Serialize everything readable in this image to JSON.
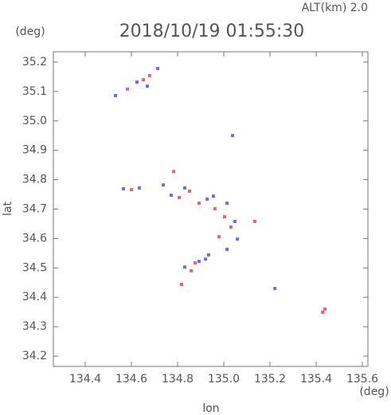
{
  "chart_data": {
    "type": "scatter",
    "title": "2018/10/19 01:55:30",
    "annotation": "ALT(km) 2.0",
    "x_label": "lon",
    "y_label": "lat",
    "x_unit": "(deg)",
    "y_unit": "(deg)",
    "xlim": [
      134.262,
      135.624
    ],
    "ylim": [
      34.165,
      35.235
    ],
    "xticks": [
      134.4,
      134.6,
      134.8,
      {
        "value": 135,
        "label": "135.0"
      },
      135.2,
      135.4,
      135.6
    ],
    "yticks": [
      34.2,
      34.3,
      34.4,
      34.5,
      34.6,
      34.7,
      34.8,
      34.9,
      {
        "value": 35,
        "label": "35.0"
      },
      35.1,
      35.2
    ],
    "series": [
      {
        "color": "#f0606e",
        "x": [
          134.583,
          134.679,
          134.652,
          134.6,
          134.783,
          134.807,
          134.852,
          134.893,
          134.962,
          135.003,
          135.031,
          134.979,
          134.876,
          134.859,
          134.817,
          135.428,
          135.438,
          135.134
        ],
        "values": [
          35.108,
          35.154,
          35.14,
          34.766,
          34.828,
          34.739,
          34.761,
          34.72,
          34.701,
          34.674,
          34.639,
          34.606,
          34.517,
          34.49,
          34.444,
          34.349,
          34.36,
          34.658
        ]
      },
      {
        "color": "#6a6af0",
        "x": [
          134.531,
          134.624,
          134.714,
          134.669,
          134.565,
          134.634,
          134.738,
          134.772,
          134.831,
          134.928,
          134.955,
          135.014,
          135.048,
          135.059,
          134.921,
          134.893,
          134.831,
          134.934,
          135.038,
          135.221,
          135.014
        ],
        "values": [
          35.086,
          35.132,
          35.178,
          35.118,
          34.769,
          34.772,
          34.782,
          34.747,
          34.772,
          34.734,
          34.744,
          34.72,
          34.658,
          34.598,
          34.53,
          34.522,
          34.503,
          34.544,
          34.95,
          34.43,
          34.563
        ]
      }
    ]
  }
}
